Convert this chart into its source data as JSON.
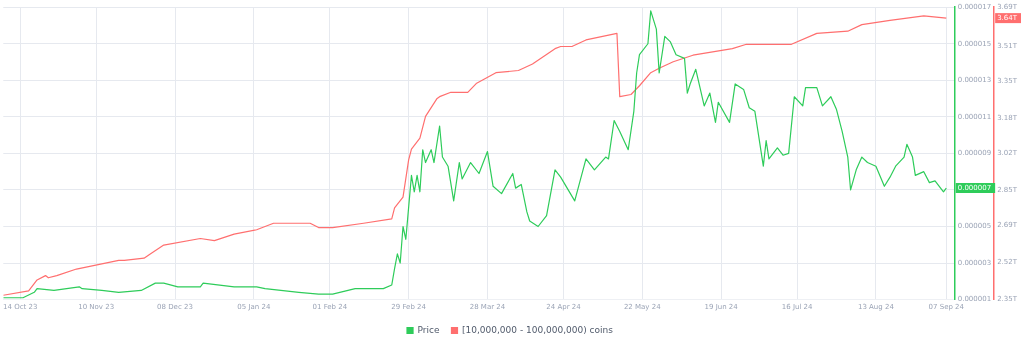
{
  "chart_data": {
    "type": "line",
    "series": [
      {
        "name": "Price",
        "color": "#2ecc5a",
        "axis": "y",
        "x": [
          "2023-10-08",
          "2023-10-15",
          "2023-10-19",
          "2023-10-20",
          "2023-10-26",
          "2023-11-04",
          "2023-11-05",
          "2023-11-12",
          "2023-11-18",
          "2023-11-26",
          "2023-12-01",
          "2023-12-04",
          "2023-12-09",
          "2023-12-17",
          "2023-12-18",
          "2023-12-29",
          "2024-01-06",
          "2024-01-09",
          "2024-01-21",
          "2024-01-28",
          "2024-02-02",
          "2024-02-10",
          "2024-02-13",
          "2024-02-20",
          "2024-02-23",
          "2024-02-24",
          "2024-02-25",
          "2024-02-26",
          "2024-02-27",
          "2024-02-28",
          "2024-03-01",
          "2024-03-02",
          "2024-03-03",
          "2024-03-04",
          "2024-03-05",
          "2024-03-06",
          "2024-03-08",
          "2024-03-09",
          "2024-03-11",
          "2024-03-12",
          "2024-03-14",
          "2024-03-16",
          "2024-03-18",
          "2024-03-19",
          "2024-03-22",
          "2024-03-25",
          "2024-03-28",
          "2024-03-30",
          "2024-04-02",
          "2024-04-06",
          "2024-04-07",
          "2024-04-09",
          "2024-04-11",
          "2024-04-12",
          "2024-04-15",
          "2024-04-18",
          "2024-04-21",
          "2024-04-23",
          "2024-04-28",
          "2024-05-02",
          "2024-05-05",
          "2024-05-09",
          "2024-05-10",
          "2024-05-12",
          "2024-05-14",
          "2024-05-17",
          "2024-05-19",
          "2024-05-20",
          "2024-05-21",
          "2024-05-24",
          "2024-05-25",
          "2024-05-27",
          "2024-05-28",
          "2024-05-30",
          "2024-06-01",
          "2024-06-03",
          "2024-06-06",
          "2024-06-07",
          "2024-06-08",
          "2024-06-10",
          "2024-06-13",
          "2024-06-15",
          "2024-06-17",
          "2024-06-18",
          "2024-06-22",
          "2024-06-24",
          "2024-06-27",
          "2024-06-29",
          "2024-07-01",
          "2024-07-04",
          "2024-07-05",
          "2024-07-06",
          "2024-07-09",
          "2024-07-11",
          "2024-07-13",
          "2024-07-15",
          "2024-07-18",
          "2024-07-19",
          "2024-07-23",
          "2024-07-25",
          "2024-07-28",
          "2024-07-30",
          "2024-08-01",
          "2024-08-03",
          "2024-08-04",
          "2024-08-06",
          "2024-08-08",
          "2024-08-10",
          "2024-08-13",
          "2024-08-16",
          "2024-08-18",
          "2024-08-20",
          "2024-08-23",
          "2024-08-24",
          "2024-08-26",
          "2024-08-27",
          "2024-08-30",
          "2024-09-01",
          "2024-09-03",
          "2024-09-06",
          "2024-09-07"
        ],
        "values": [
          1.1e-06,
          1.1e-06,
          1.4e-06,
          1.6e-06,
          1.5e-06,
          1.7e-06,
          1.6e-06,
          1.5e-06,
          1.4e-06,
          1.5e-06,
          1.9e-06,
          1.9e-06,
          1.7e-06,
          1.7e-06,
          1.9e-06,
          1.7e-06,
          1.7e-06,
          1.6e-06,
          1.4e-06,
          1.3e-06,
          1.3e-06,
          1.6e-06,
          1.6e-06,
          1.6e-06,
          1.8e-06,
          2.7e-06,
          3.5e-06,
          3e-06,
          5e-06,
          4.3e-06,
          7.8e-06,
          6.9e-06,
          7.8e-06,
          6.9e-06,
          9.2e-06,
          8.5e-06,
          9.2e-06,
          8.5e-06,
          1.05e-05,
          8.8e-06,
          8.3e-06,
          6.4e-06,
          8.5e-06,
          7.6e-06,
          8.5e-06,
          7.9e-06,
          9.1e-06,
          7.2e-06,
          6.8e-06,
          7.9e-06,
          7.1e-06,
          7.3e-06,
          5.8e-06,
          5.3e-06,
          5e-06,
          5.6e-06,
          8.1e-06,
          7.7e-06,
          6.4e-06,
          8.7e-06,
          8.1e-06,
          8.8e-06,
          8.7e-06,
          1.08e-05,
          1.02e-05,
          9.2e-06,
          1.13e-05,
          1.34e-05,
          1.44e-05,
          1.5e-05,
          1.68e-05,
          1.58e-05,
          1.34e-05,
          1.54e-05,
          1.51e-05,
          1.44e-05,
          1.42e-05,
          1.23e-05,
          1.28e-05,
          1.36e-05,
          1.16e-05,
          1.23e-05,
          1.07e-05,
          1.18e-05,
          1.07e-05,
          1.28e-05,
          1.25e-05,
          1.15e-05,
          1.13e-05,
          8.3e-06,
          9.7e-06,
          8.7e-06,
          9.3e-06,
          8.9e-06,
          9e-06,
          1.21e-05,
          1.16e-05,
          1.26e-05,
          1.26e-05,
          1.16e-05,
          1.21e-05,
          1.14e-05,
          1.02e-05,
          8.8e-06,
          7e-06,
          8.1e-06,
          8.8e-06,
          8.5e-06,
          8.3e-06,
          7.2e-06,
          7.7e-06,
          8.3e-06,
          8.8e-06,
          9.5e-06,
          8.8e-06,
          7.8e-06,
          8e-06,
          7.4e-06,
          7.5e-06,
          6.9e-06,
          7.1e-06
        ],
        "value_labels": [
          null,
          null,
          null,
          null,
          null,
          null,
          null,
          null,
          null,
          null,
          null,
          null,
          null,
          null,
          null,
          null,
          null,
          null,
          null,
          null,
          null,
          null,
          null,
          null,
          null,
          null,
          null,
          null,
          null,
          null,
          null,
          null,
          null,
          null,
          null,
          null,
          null,
          null,
          null,
          null,
          null,
          null,
          null,
          null,
          null,
          null,
          null,
          null,
          null,
          null,
          null,
          null,
          null,
          null,
          null,
          null,
          null,
          null,
          null,
          null,
          null,
          null,
          null,
          null,
          null,
          null,
          null,
          null,
          null,
          null,
          null,
          null,
          null,
          null,
          null,
          null,
          null,
          null,
          null,
          null,
          null,
          null,
          null,
          null,
          null,
          null,
          null,
          null,
          null,
          null,
          null,
          null,
          null,
          null,
          null,
          null,
          null,
          null,
          null,
          null,
          null,
          null,
          null,
          null,
          null,
          null,
          null,
          null,
          null,
          null,
          null,
          null,
          null,
          null,
          null,
          null,
          null,
          null,
          null,
          null,
          "0.000007"
        ]
      },
      {
        "name": "[10,000,000 - 100,000,000) coins",
        "color": "#ff6f6f",
        "axis": "y2",
        "x": [
          "2023-10-08",
          "2023-10-17",
          "2023-10-20",
          "2023-10-23",
          "2023-10-24",
          "2023-10-27",
          "2023-11-03",
          "2023-11-18",
          "2023-11-20",
          "2023-11-27",
          "2023-12-04",
          "2023-12-17",
          "2023-12-22",
          "2023-12-29",
          "2024-01-06",
          "2024-01-12",
          "2024-01-25",
          "2024-01-28",
          "2024-02-02",
          "2024-02-13",
          "2024-02-23",
          "2024-02-24",
          "2024-02-27",
          "2024-02-29",
          "2024-03-01",
          "2024-03-04",
          "2024-03-06",
          "2024-03-10",
          "2024-03-11",
          "2024-03-15",
          "2024-03-21",
          "2024-03-24",
          "2024-03-31",
          "2024-04-08",
          "2024-04-13",
          "2024-04-21",
          "2024-04-23",
          "2024-04-27",
          "2024-05-02",
          "2024-05-13",
          "2024-05-14",
          "2024-05-18",
          "2024-05-21",
          "2024-05-25",
          "2024-05-28",
          "2024-06-02",
          "2024-06-09",
          "2024-06-23",
          "2024-06-28",
          "2024-07-04",
          "2024-07-14",
          "2024-07-23",
          "2024-08-03",
          "2024-08-08",
          "2024-08-18",
          "2024-08-30",
          "2024-09-07"
        ],
        "values": [
          2.37,
          2.39,
          2.44,
          2.46,
          2.45,
          2.46,
          2.49,
          2.53,
          2.53,
          2.54,
          2.6,
          2.63,
          2.62,
          2.65,
          2.67,
          2.7,
          2.7,
          2.68,
          2.68,
          2.7,
          2.72,
          2.77,
          2.82,
          2.99,
          3.04,
          3.09,
          3.19,
          3.27,
          3.28,
          3.3,
          3.3,
          3.34,
          3.39,
          3.4,
          3.43,
          3.5,
          3.51,
          3.51,
          3.54,
          3.57,
          3.28,
          3.29,
          3.33,
          3.39,
          3.41,
          3.44,
          3.47,
          3.5,
          3.52,
          3.52,
          3.52,
          3.57,
          3.58,
          3.61,
          3.63,
          3.65,
          3.64
        ]
      }
    ],
    "annotations": [
      "3.64T"
    ],
    "xlim": [
      "2023-10-08",
      "2024-09-10"
    ],
    "xticks": [
      {
        "value": "2023-10-14",
        "label": "14 Oct 23"
      },
      {
        "value": "2023-11-10",
        "label": "10 Nov 23"
      },
      {
        "value": "2023-12-08",
        "label": "08 Dec 23"
      },
      {
        "value": "2024-01-05",
        "label": "05 Jan 24"
      },
      {
        "value": "2024-02-01",
        "label": "01 Feb 24"
      },
      {
        "value": "2024-02-29",
        "label": "29 Feb 24"
      },
      {
        "value": "2024-03-28",
        "label": "28 Mar 24"
      },
      {
        "value": "2024-04-24",
        "label": "24 Apr 24"
      },
      {
        "value": "2024-05-22",
        "label": "22 May 24"
      },
      {
        "value": "2024-06-19",
        "label": "19 Jun 24"
      },
      {
        "value": "2024-07-16",
        "label": "16 Jul 24"
      },
      {
        "value": "2024-08-13",
        "label": "13 Aug 24"
      },
      {
        "value": "2024-09-07",
        "label": "07 Sep 24"
      }
    ],
    "ylim": [
      1e-06,
      1.7e-05
    ],
    "yticks": [
      {
        "value": 1e-06,
        "label": "0.000001"
      },
      {
        "value": 3e-06,
        "label": "0.000003"
      },
      {
        "value": 5e-06,
        "label": "0.000005"
      },
      {
        "value": 7e-06,
        "label": "0.000007"
      },
      {
        "value": 9e-06,
        "label": "0.000009"
      },
      {
        "value": 1.1e-05,
        "label": "0.000011"
      },
      {
        "value": 1.3e-05,
        "label": "0.000013"
      },
      {
        "value": 1.5e-05,
        "label": "0.000015"
      },
      {
        "value": 1.7e-05,
        "label": "0.000017"
      }
    ],
    "y2lim": [
      2.35,
      3.69
    ],
    "y2ticks": [
      {
        "value": 2.35,
        "label": "2.35T"
      },
      {
        "value": 2.52,
        "label": "2.52T"
      },
      {
        "value": 2.69,
        "label": "2.69T"
      },
      {
        "value": 2.85,
        "label": "2.85T"
      },
      {
        "value": 3.02,
        "label": "3.02T"
      },
      {
        "value": 3.18,
        "label": "3.18T"
      },
      {
        "value": 3.35,
        "label": "3.35T"
      },
      {
        "value": 3.51,
        "label": "3.51T"
      },
      {
        "value": 3.69,
        "label": "3.69T"
      }
    ],
    "grid": true,
    "legend": "bottom",
    "marker": "none",
    "line_style": "solid"
  }
}
